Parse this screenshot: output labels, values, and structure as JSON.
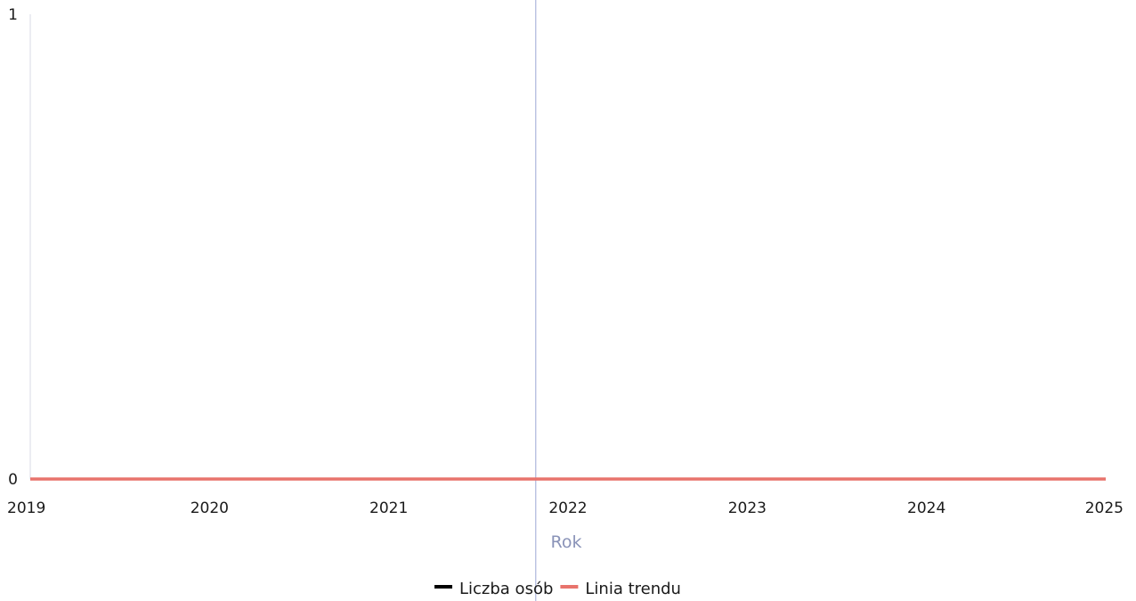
{
  "chart_data": {
    "type": "line",
    "title": "",
    "xlabel": "Rok",
    "ylabel": "",
    "x": [
      "2019",
      "2020",
      "2021",
      "2022",
      "2023",
      "2024",
      "2025"
    ],
    "xlim": [
      2019,
      2025
    ],
    "ylim": [
      0,
      1
    ],
    "yticks": [
      "0",
      "1"
    ],
    "series": [
      {
        "name": "Liczba osób",
        "color": "#000000",
        "values": [
          0,
          0,
          0,
          0,
          0,
          0,
          0
        ]
      },
      {
        "name": "Linia trendu",
        "color": "#e8736c",
        "values": [
          0,
          0,
          0,
          0,
          0,
          0,
          0
        ]
      }
    ],
    "cursor_x": 2021.82,
    "legend_position": "bottom-center",
    "grid": false
  }
}
